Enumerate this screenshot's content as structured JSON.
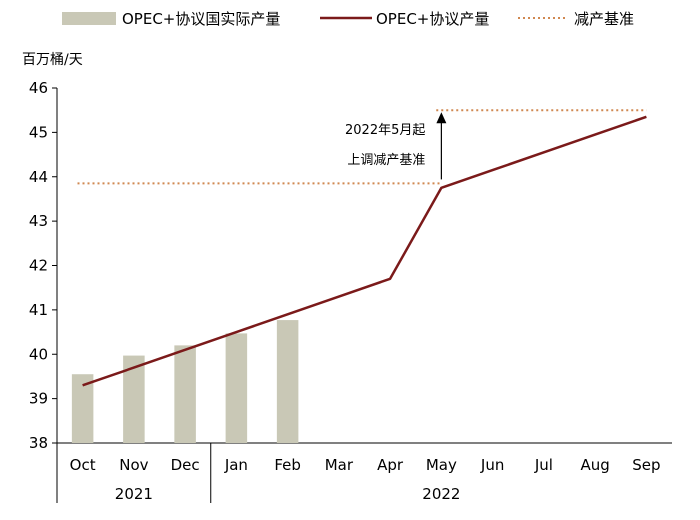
{
  "chart_data": {
    "type": "bar",
    "unit_label": "百万桶/天",
    "categories": [
      "Oct",
      "Nov",
      "Dec",
      "Jan",
      "Feb",
      "Mar",
      "Apr",
      "May",
      "Jun",
      "Jul",
      "Aug",
      "Sep"
    ],
    "year_groups": [
      {
        "label": "2021",
        "span": 3
      },
      {
        "label": "2022",
        "span": 9
      }
    ],
    "ylim": [
      38,
      46
    ],
    "yticks": [
      38,
      39,
      40,
      41,
      42,
      43,
      44,
      45,
      46
    ],
    "grid": false,
    "legend_position": "top",
    "series": [
      {
        "name": "OPEC+协议国实际产量",
        "kind": "bar",
        "color": "#c9c8b6",
        "values": [
          39.55,
          39.97,
          40.2,
          40.47,
          40.77,
          null,
          null,
          null,
          null,
          null,
          null,
          null
        ]
      },
      {
        "name": "OPEC+协议产量",
        "kind": "line",
        "color": "#7b1a1a",
        "values": [
          39.3,
          39.7,
          40.1,
          40.5,
          40.9,
          41.3,
          41.7,
          43.75,
          44.15,
          44.55,
          44.95,
          45.35
        ]
      },
      {
        "name": "减产基准",
        "kind": "dotted-step",
        "color": "#d08850",
        "segments": [
          {
            "from": "Oct",
            "to": "May",
            "value": 43.85
          },
          {
            "from": "May",
            "to": "Sep",
            "value": 45.5
          }
        ]
      }
    ],
    "annotation": {
      "lines": [
        "2022年5月起",
        "上调减产基准"
      ],
      "category": "May",
      "arrow_from": 43.85,
      "arrow_to": 45.5
    }
  }
}
